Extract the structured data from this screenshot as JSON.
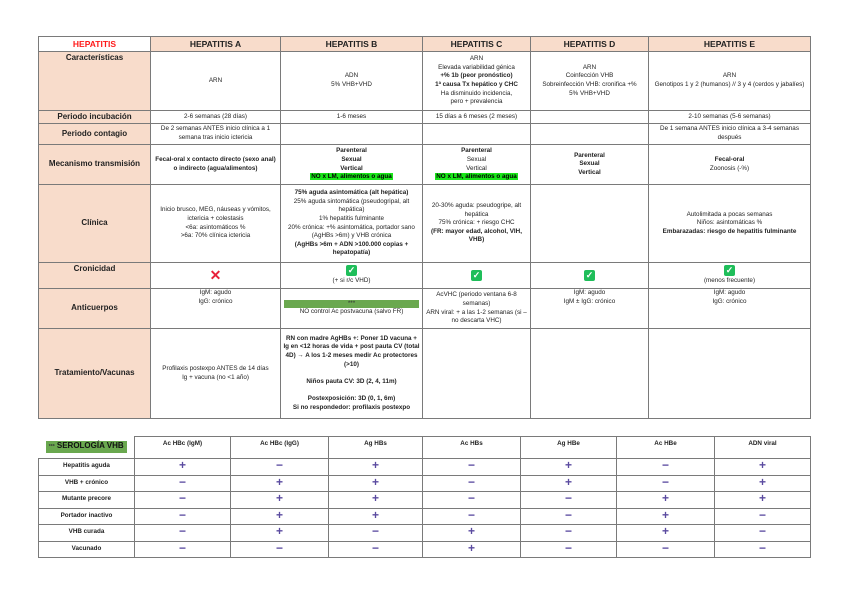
{
  "hepatitis_table": {
    "headers": [
      "HEPATITIS",
      "HEPATITIS A",
      "HEPATITIS B",
      "HEPATITIS C",
      "HEPATITIS D",
      "HEPATITIS E"
    ],
    "row_labels": [
      "Características",
      "Periodo incubación",
      "Periodo contagio",
      "Mecanismo transmisión",
      "Clínica",
      "Cronicidad",
      "Anticuerpos",
      "Tratamiento/Vacunas"
    ],
    "caracteristicas": {
      "a": [
        "ARN"
      ],
      "b": [
        "ADN",
        "5% VHB+VHD"
      ],
      "c": [
        "ARN",
        "Elevada variabilidad génica",
        "+% 1b (peor pronóstico)",
        "1ª causa Tx hepático y CHC",
        "Ha disminuido incidencia,",
        "pero + prevalencia"
      ],
      "d": [
        "ARN",
        "Coinfección VHB",
        "Sobreinfección VHB: cronifica +%",
        "5% VHB+VHD"
      ],
      "e": [
        "ARN",
        "Genotipos 1 y 2 (humanos) // 3 y 4 (cerdos y jabalíes)"
      ]
    },
    "incubacion": {
      "a": "2-6 semanas (28 días)",
      "b": "1-6 meses",
      "c": "15 días a 6 meses (2 meses)",
      "d": "",
      "e": "2-10 semanas (5-6 semanas)"
    },
    "contagio": {
      "a": "De 2 semanas ANTES inicio clínica a 1 semana tras inicio ictericia",
      "b": "",
      "c": "",
      "d": "",
      "e": "De 1 semana ANTES inicio clínica a 3-4 semanas después"
    },
    "mecanismo": {
      "a": "Fecal-oral x contacto directo (sexo anal) o indirecto (agua/alimentos)",
      "b": [
        "Parenteral",
        "Sexual",
        "Vertical"
      ],
      "b_highlight": "NO x LM, alimentos o agua",
      "c": [
        "Parenteral",
        "Sexual",
        "Vertical"
      ],
      "c_highlight": "NO x LM, alimentos o agua",
      "d": [
        "Parenteral",
        "Sexual",
        "Vertical"
      ],
      "e": [
        "Fecal-oral",
        "Zoonosis (-%)"
      ]
    },
    "clinica": {
      "a": [
        "Inicio brusco, MEG, náuseas y vómitos, ictericia + colestasis",
        "<6a: asintomáticos %",
        ">6a: 70% clínica ictericia"
      ],
      "b": [
        "75% aguda asintomática (alt hepática)",
        "25% aguda sintomática (pseudogripal, alt hepática)",
        "1% hepatitis fulminante",
        "20% crónica: +% asintomática, portador sano (AgHBs >6m) y VHB crónica",
        "(AgHBs >6m + ADN >100.000 copias + hepatopatía)"
      ],
      "c": [
        "20-30% aguda: pseudogripe, alt hepática",
        "75% crónica: + riesgo CHC",
        "(FR: mayor edad, alcohol, VIH, VHB)"
      ],
      "d": [],
      "e": [
        "Autolimitada a pocas semanas",
        "Niños: asintomáticas %",
        "Embarazadas: riesgo de hepatitis fulminante"
      ]
    },
    "cronicidad": {
      "a": {
        "icon": "cross",
        "note": ""
      },
      "b": {
        "icon": "check",
        "note": "(+ si r/c VHD)"
      },
      "c": {
        "icon": "check",
        "note": ""
      },
      "d": {
        "icon": "check",
        "note": ""
      },
      "e": {
        "icon": "check",
        "note": "(menos frecuente)"
      }
    },
    "anticuerpos": {
      "a": [
        "IgM: agudo",
        "IgG: crónico"
      ],
      "b_bar": "***",
      "b": "NO control Ac postvacuna (salvo FR)",
      "c": [
        "AcVHC (periodo ventana 6-8 semanas)",
        "ARN viral: + a las 1-2 semanas (si – no descarta VHC)"
      ],
      "d": [
        "IgM: agudo",
        "IgM ± IgG: crónico"
      ],
      "e": [
        "IgM: agudo",
        "IgG: crónico"
      ]
    },
    "tratamiento": {
      "a": [
        "Profilaxis postexpo ANTES de 14 días",
        "Ig + vacuna (no <1 año)"
      ],
      "b": [
        "RN con madre AgHBs +: Poner 1D vacuna + Ig en <12 horas de vida + post pauta CV (total 4D) → A los 1-2 meses medir Ac protectores (>10)",
        "Niños pauta CV: 3D (2, 4, 11m)",
        "Postexposición: 3D (0, 1, 6m)",
        "Si no respondedor: profilaxis postexpo"
      ],
      "c": "",
      "d": "",
      "e": ""
    }
  },
  "serologia_table": {
    "title": "SEROLOGÍA VHB",
    "title_prefix": "***",
    "columns": [
      "Ac HBc (IgM)",
      "Ac HBc (IgG)",
      "Ag HBs",
      "Ac HBs",
      "Ag HBe",
      "Ac HBe",
      "ADN viral"
    ],
    "rows": [
      {
        "label": "Hepatitis aguda",
        "values": [
          "+",
          "−",
          "+",
          "−",
          "+",
          "−",
          "+"
        ]
      },
      {
        "label": "VHB + crónico",
        "values": [
          "−",
          "+",
          "+",
          "−",
          "+",
          "−",
          "+"
        ]
      },
      {
        "label": "Mutante precore",
        "values": [
          "−",
          "+",
          "+",
          "−",
          "−",
          "+",
          "+"
        ]
      },
      {
        "label": "Portador inactivo",
        "values": [
          "−",
          "+",
          "+",
          "−",
          "−",
          "+",
          "−"
        ]
      },
      {
        "label": "VHB curada",
        "values": [
          "−",
          "+",
          "−",
          "+",
          "−",
          "+",
          "−"
        ]
      },
      {
        "label": "Vacunado",
        "values": [
          "−",
          "−",
          "−",
          "+",
          "−",
          "−",
          "−"
        ]
      }
    ]
  },
  "colors": {
    "label_bg": "#f8dccb",
    "highlight": "#19e619",
    "bar": "#6aa84f",
    "title_red": "#ff1a1a",
    "sign": "#5b4ba0",
    "check": "#1fbe5a",
    "cross": "#e8203a"
  }
}
